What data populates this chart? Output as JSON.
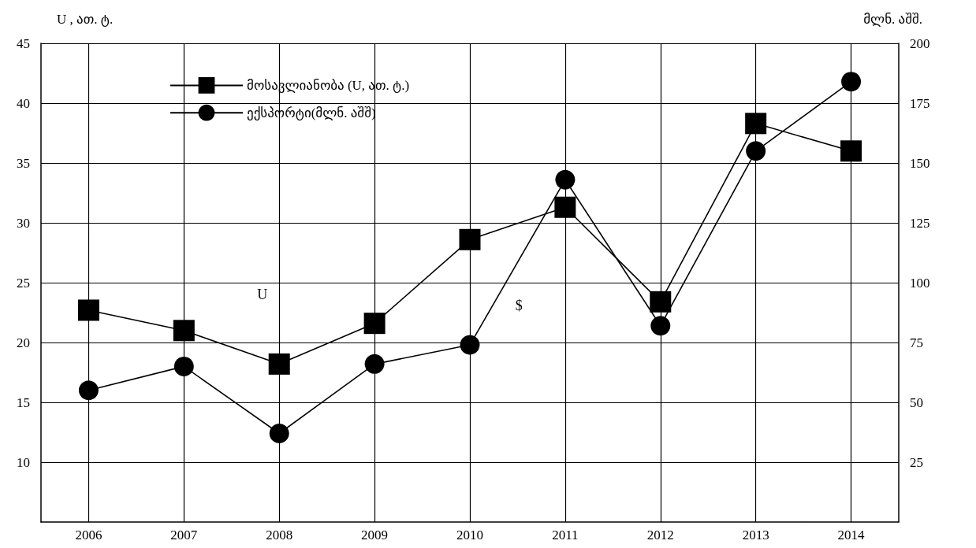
{
  "chart_data": {
    "type": "line",
    "ylabel": "U , ათ. ტ.",
    "y2label": "მლნ. აშშ.",
    "categories": [
      "2006",
      "2007",
      "2008",
      "2009",
      "2010",
      "2011",
      "2012",
      "2013",
      "2014"
    ],
    "series": [
      {
        "name": "მოსავლიანობა (U, ათ. ტ.)",
        "color": "#000000",
        "marker": "square",
        "values": [
          22.7,
          21.0,
          18.2,
          21.6,
          28.6,
          31.3,
          23.4,
          38.3,
          36.0
        ]
      },
      {
        "name": "ექსპორტი(მლნ. აშშ)",
        "color": "#000000",
        "marker": "circle",
        "axis": "y2",
        "values": [
          55,
          65,
          37,
          66,
          74,
          143,
          82,
          155,
          184
        ]
      }
    ],
    "ylim": [
      5,
      45
    ],
    "yticks": [
      10,
      15,
      20,
      25,
      30,
      35,
      40,
      45
    ],
    "y2lim": [
      0,
      200
    ],
    "y2ticks": [
      25,
      50,
      75,
      100,
      125,
      150,
      175,
      200
    ],
    "grid": true,
    "legend": "top left",
    "line_style": "solid",
    "annotations": [
      "U",
      "$"
    ]
  }
}
